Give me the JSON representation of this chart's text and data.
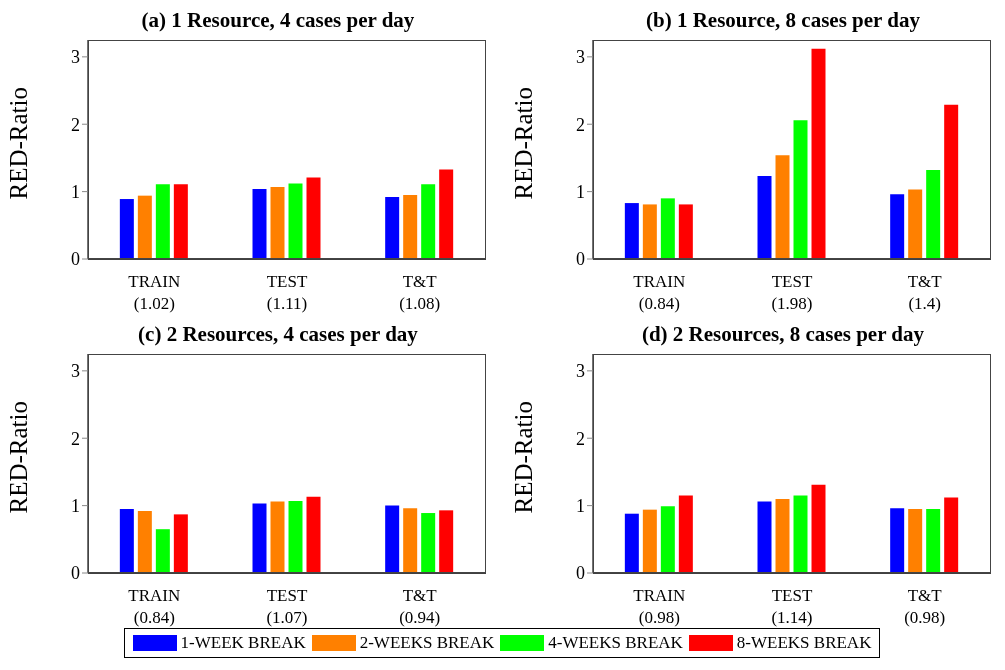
{
  "chart_data": [
    {
      "type": "bar",
      "title": "(a) 1 Resource, 4 cases per day",
      "ylabel": "RED-Ratio",
      "categories": [
        "TRAIN\n(1.02)",
        "TEST\n(1.11)",
        "T&T\n(1.08)"
      ],
      "ylim": [
        0,
        3.25
      ],
      "yticks": [
        0,
        1,
        2,
        3
      ],
      "series": [
        {
          "color": "#0000ff",
          "values": [
            0.89,
            1.04,
            0.92
          ]
        },
        {
          "color": "#ff8000",
          "values": [
            0.94,
            1.07,
            0.95
          ]
        },
        {
          "color": "#00ff00",
          "values": [
            1.11,
            1.12,
            1.11
          ]
        },
        {
          "color": "#ff0000",
          "values": [
            1.11,
            1.21,
            1.33
          ]
        }
      ]
    },
    {
      "type": "bar",
      "title": "(b) 1 Resource, 8 cases per day",
      "ylabel": "RED-Ratio",
      "categories": [
        "TRAIN\n(0.84)",
        "TEST\n(1.98)",
        "T&T\n(1.4)"
      ],
      "ylim": [
        0,
        3.25
      ],
      "yticks": [
        0,
        1,
        2,
        3
      ],
      "series": [
        {
          "color": "#0000ff",
          "values": [
            0.83,
            1.23,
            0.96
          ]
        },
        {
          "color": "#ff8000",
          "values": [
            0.81,
            1.54,
            1.03
          ]
        },
        {
          "color": "#00ff00",
          "values": [
            0.9,
            2.06,
            1.32
          ]
        },
        {
          "color": "#ff0000",
          "values": [
            0.81,
            3.12,
            2.29
          ]
        }
      ]
    },
    {
      "type": "bar",
      "title": "(c) 2 Resources, 4 cases per day",
      "ylabel": "RED-Ratio",
      "categories": [
        "TRAIN\n(0.84)",
        "TEST\n(1.07)",
        "T&T\n(0.94)"
      ],
      "ylim": [
        0,
        3.25
      ],
      "yticks": [
        0,
        1,
        2,
        3
      ],
      "series": [
        {
          "color": "#0000ff",
          "values": [
            0.95,
            1.03,
            1.0
          ]
        },
        {
          "color": "#ff8000",
          "values": [
            0.92,
            1.06,
            0.96
          ]
        },
        {
          "color": "#00ff00",
          "values": [
            0.65,
            1.07,
            0.89
          ]
        },
        {
          "color": "#ff0000",
          "values": [
            0.87,
            1.13,
            0.93
          ]
        }
      ]
    },
    {
      "type": "bar",
      "title": "(d) 2 Resources, 8 cases per day",
      "ylabel": "RED-Ratio",
      "categories": [
        "TRAIN\n(0.98)",
        "TEST\n(1.14)",
        "T&T\n(0.98)"
      ],
      "ylim": [
        0,
        3.25
      ],
      "yticks": [
        0,
        1,
        2,
        3
      ],
      "legend": "bottom",
      "series": [
        {
          "name": "1-WEEK BREAK",
          "color": "#0000ff",
          "values": [
            0.88,
            1.06,
            0.96
          ]
        },
        {
          "name": "2-WEEKS BREAK",
          "color": "#ff8000",
          "values": [
            0.94,
            1.1,
            0.95
          ]
        },
        {
          "name": "4-WEEKS BREAK",
          "color": "#00ff00",
          "values": [
            0.99,
            1.15,
            0.95
          ]
        },
        {
          "name": "8-WEEKS BREAK",
          "color": "#ff0000",
          "values": [
            1.15,
            1.31,
            1.12
          ]
        }
      ]
    }
  ]
}
